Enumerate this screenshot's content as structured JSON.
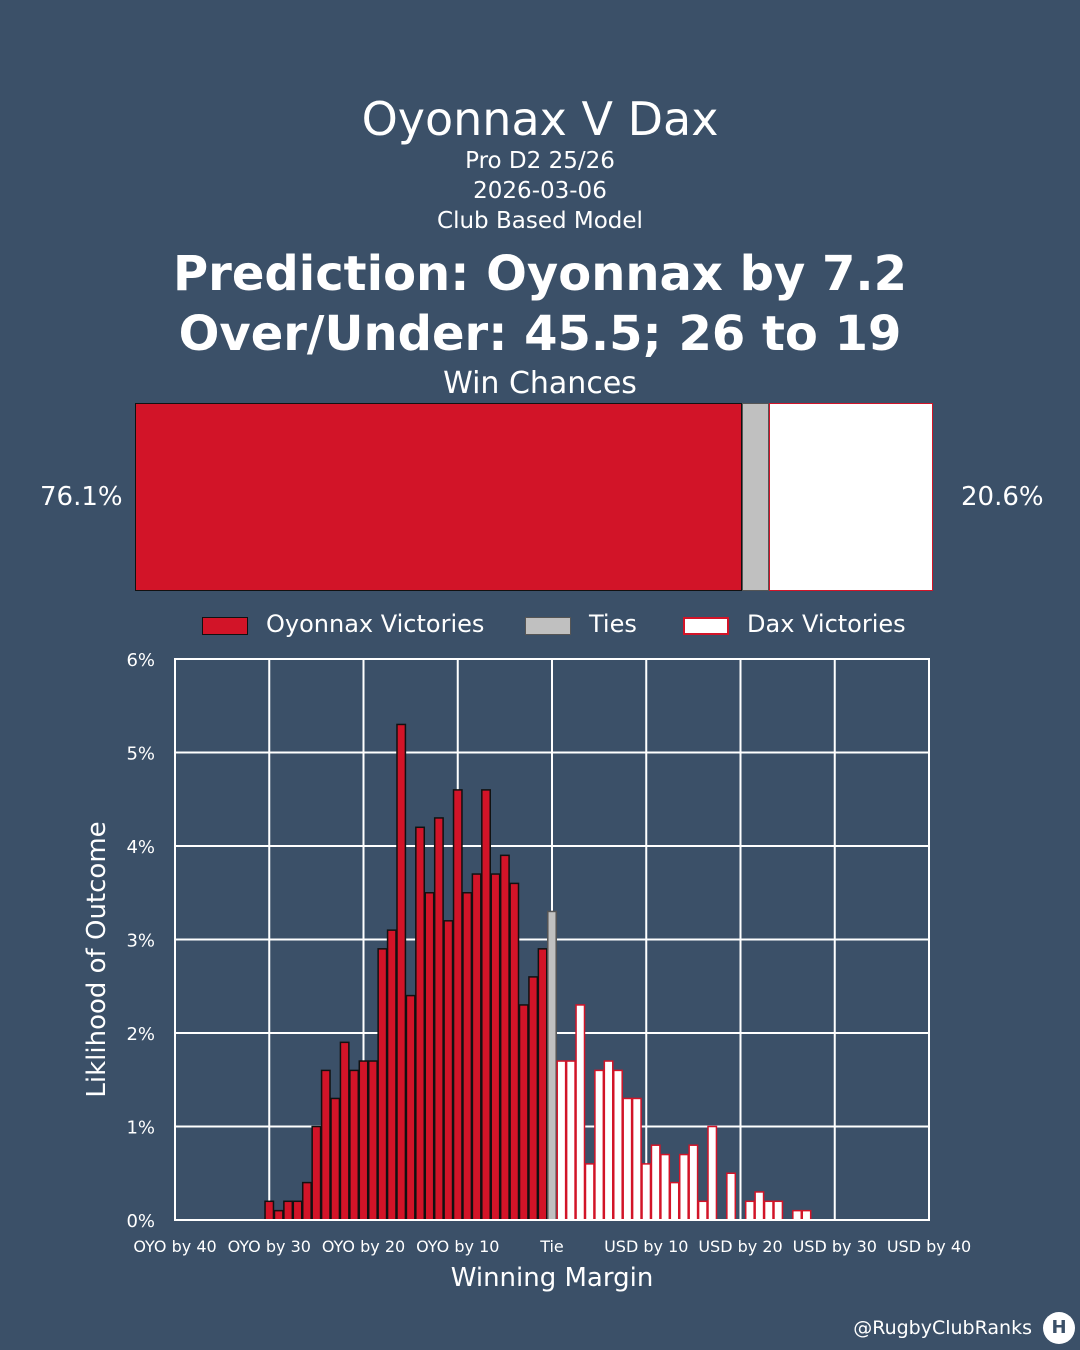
{
  "header": {
    "title": "Oyonnax V Dax",
    "league": "Pro D2 25/26",
    "date": "2026-03-06",
    "model": "Club Based Model",
    "prediction": "Prediction: Oyonnax by 7.2",
    "over_under": "Over/Under: 45.5; 26 to 19",
    "win_chances_label": "Win Chances"
  },
  "win_chances": {
    "home_pct": 76.1,
    "tie_pct": 3.3,
    "away_pct": 20.6,
    "home_label": "76.1%",
    "away_label": "20.6%"
  },
  "legend": {
    "home": "Oyonnax Victories",
    "tie": "Ties",
    "away": "Dax Victories"
  },
  "colors": {
    "background": "#3b5068",
    "home": "#d21428",
    "tie": "#c0c0c0",
    "away": "#ffffff"
  },
  "chart_data": {
    "type": "bar",
    "xlabel": "Winning Margin",
    "ylabel": "Liklihood of Outcome",
    "xlim": [
      -40,
      40
    ],
    "ylim": [
      0,
      6
    ],
    "x_ticks": [
      {
        "value": -40,
        "label": "OYO by 40"
      },
      {
        "value": -30,
        "label": "OYO by 30"
      },
      {
        "value": -20,
        "label": "OYO by 20"
      },
      {
        "value": -10,
        "label": "OYO by 10"
      },
      {
        "value": 0,
        "label": "Tie"
      },
      {
        "value": 10,
        "label": "USD by 10"
      },
      {
        "value": 20,
        "label": "USD by 20"
      },
      {
        "value": 30,
        "label": "USD by 30"
      },
      {
        "value": 40,
        "label": "USD by 40"
      }
    ],
    "y_ticks": [
      {
        "value": 0,
        "label": "0%"
      },
      {
        "value": 1,
        "label": "1%"
      },
      {
        "value": 2,
        "label": "2%"
      },
      {
        "value": 3,
        "label": "3%"
      },
      {
        "value": 4,
        "label": "4%"
      },
      {
        "value": 5,
        "label": "5%"
      },
      {
        "value": 6,
        "label": "6%"
      }
    ],
    "grid": true,
    "series": [
      {
        "name": "Oyonnax Victories",
        "x": [
          -30,
          -29,
          -28,
          -27,
          -26,
          -25,
          -24,
          -23,
          -22,
          -21,
          -20,
          -19,
          -18,
          -17,
          -16,
          -15,
          -14,
          -13,
          -12,
          -11,
          -10,
          -9,
          -8,
          -7,
          -6,
          -5,
          -4,
          -3,
          -2,
          -1
        ],
        "values": [
          0.2,
          0.1,
          0.2,
          0.2,
          0.4,
          1.0,
          1.6,
          1.3,
          1.9,
          1.6,
          1.7,
          1.7,
          2.9,
          3.1,
          5.3,
          2.4,
          4.2,
          3.5,
          4.3,
          3.2,
          4.6,
          3.5,
          3.7,
          4.6,
          3.7,
          3.9,
          3.6,
          2.3,
          2.6,
          2.9
        ]
      },
      {
        "name": "Ties",
        "x": [
          0
        ],
        "values": [
          3.3
        ]
      },
      {
        "name": "Dax Victories",
        "x": [
          1,
          2,
          3,
          4,
          5,
          6,
          7,
          8,
          9,
          10,
          11,
          12,
          13,
          14,
          15,
          16,
          17,
          18,
          19,
          20,
          21,
          22,
          23,
          24,
          25,
          26,
          27,
          28,
          29,
          30
        ],
        "values": [
          1.7,
          1.7,
          2.3,
          0.6,
          1.6,
          1.7,
          1.6,
          1.3,
          1.3,
          0.6,
          0.8,
          0.7,
          0.4,
          0.7,
          0.8,
          0.2,
          1.0,
          0.0,
          0.5,
          0.0,
          0.2,
          0.3,
          0.2,
          0.2,
          0.0,
          0.1,
          0.1,
          0.0,
          0.0,
          0.0
        ]
      }
    ]
  },
  "footer": {
    "handle": "@RugbyClubRanks"
  }
}
